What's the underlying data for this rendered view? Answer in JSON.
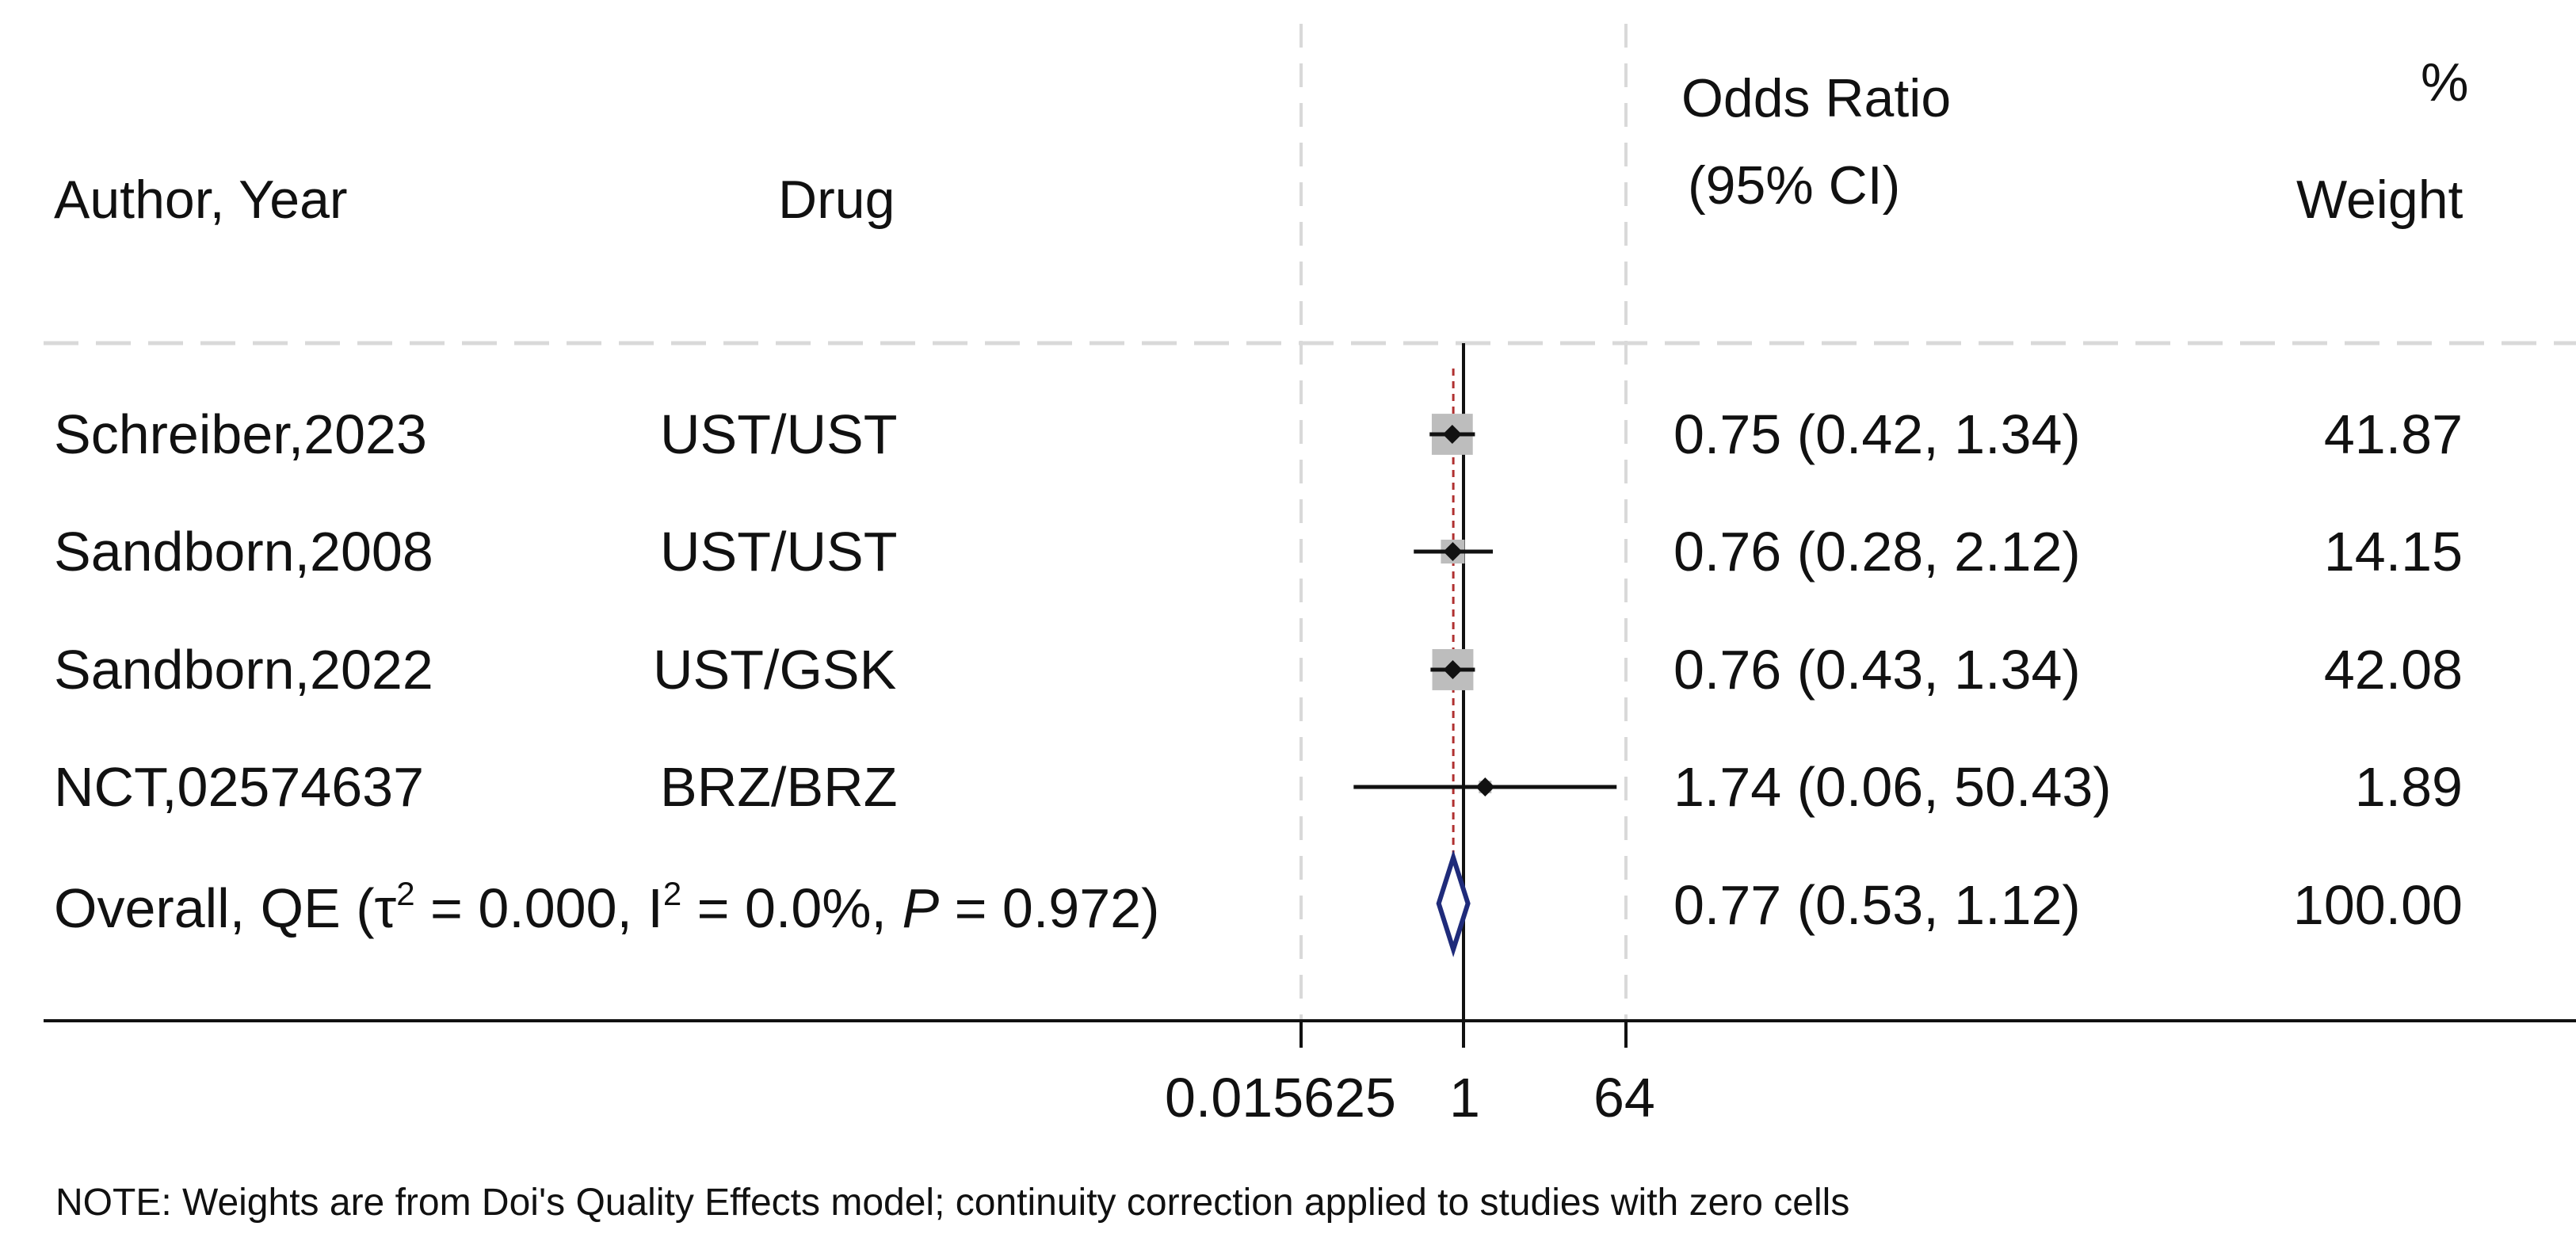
{
  "header": {
    "author_year": "Author, Year",
    "drug": "Drug",
    "or_line1": "Odds Ratio",
    "or_line2": "(95% CI)",
    "weight_line1": "%",
    "weight_line2": "Weight"
  },
  "overall_label": {
    "prefix": "Overall, QE (",
    "tau": "τ",
    "sup2a": "2",
    "mid1": " = 0.000, I",
    "sup2b": "2",
    "mid2": " = 0.0%, ",
    "p": "P",
    "suffix": " = 0.972)"
  },
  "note": "NOTE: Weights are from Doi's Quality Effects model; continuity correction applied to studies with zero cells",
  "chart_data": {
    "type": "forest",
    "x_scale": "log2",
    "xlim": [
      0.015625,
      64
    ],
    "x_ticks": [
      0.015625,
      1,
      64
    ],
    "x_tick_labels": [
      "0.015625",
      "1",
      "64"
    ],
    "null_line": 1,
    "pooled_line": 0.77,
    "studies": [
      {
        "author": "Schreiber,2023",
        "drug": "UST/UST",
        "or": 0.75,
        "lo": 0.42,
        "hi": 1.34,
        "or_text": "0.75 (0.42, 1.34)",
        "weight": 41.87,
        "weight_text": "41.87"
      },
      {
        "author": "Sandborn,2008",
        "drug": "UST/UST",
        "or": 0.76,
        "lo": 0.28,
        "hi": 2.12,
        "or_text": "0.76 (0.28, 2.12)",
        "weight": 14.15,
        "weight_text": "14.15"
      },
      {
        "author": "Sandborn,2022",
        "drug": "UST/GSK",
        "or": 0.76,
        "lo": 0.43,
        "hi": 1.34,
        "or_text": "0.76 (0.43, 1.34)",
        "weight": 42.08,
        "weight_text": "42.08"
      },
      {
        "author": "NCT,02574637",
        "drug": "BRZ/BRZ",
        "or": 1.74,
        "lo": 0.06,
        "hi": 50.43,
        "or_text": "1.74 (0.06, 50.43)",
        "weight": 1.89,
        "weight_text": "1.89"
      }
    ],
    "overall": {
      "or": 0.77,
      "lo": 0.53,
      "hi": 1.12,
      "or_text": "0.77 (0.53, 1.12)",
      "weight": 100.0,
      "weight_text": "100.00"
    },
    "colors": {
      "diamond": "#1f2b7a",
      "pooled_line": "#b03030",
      "box": "#bdbdbd",
      "grid": "#d9d9d9",
      "axis": "#111111"
    }
  }
}
